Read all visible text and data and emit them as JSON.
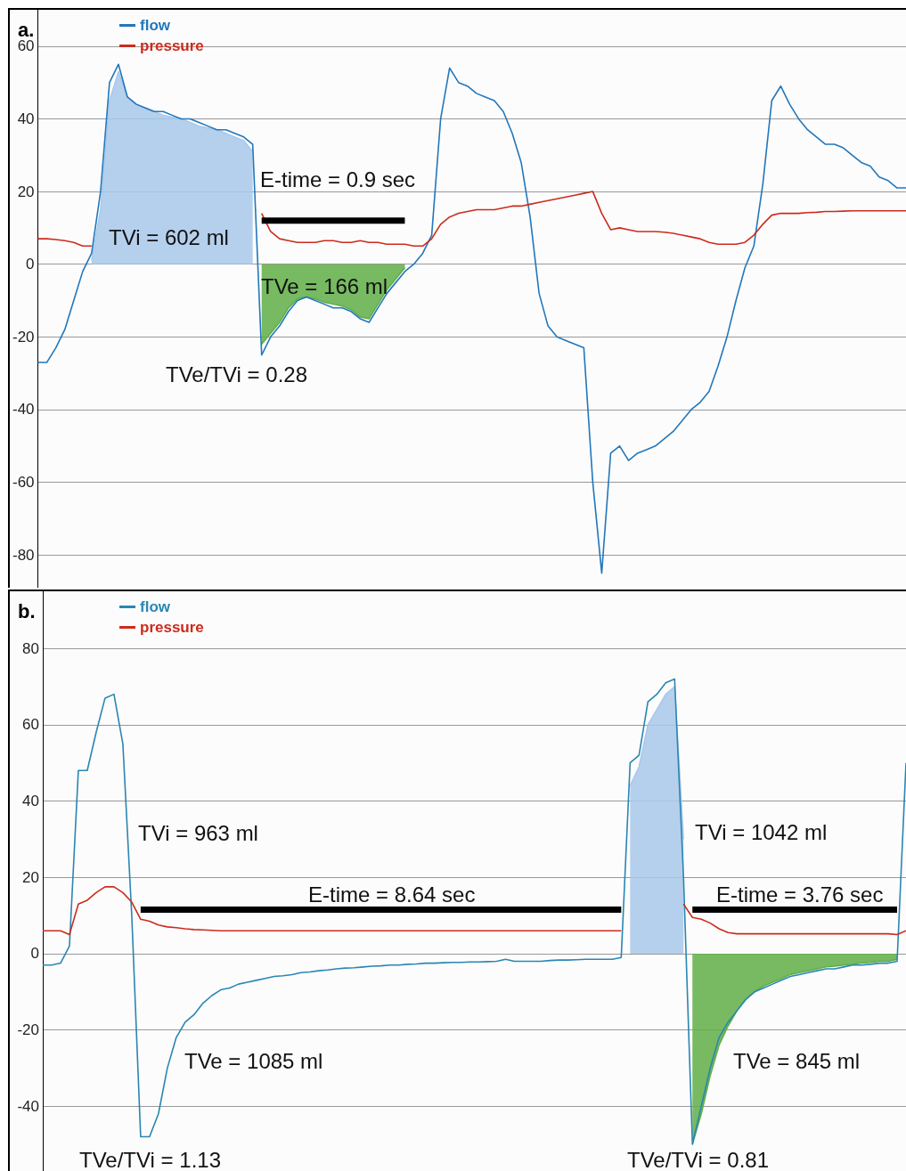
{
  "chart_data": [
    {
      "type": "line",
      "title": "a.",
      "categories": [
        null,
        null,
        null,
        null,
        null,
        null,
        null,
        null,
        null,
        null,
        null,
        null,
        null,
        null,
        null,
        null,
        null,
        null,
        null,
        null,
        null,
        null,
        null,
        null,
        null,
        null,
        null,
        null,
        null,
        null,
        null,
        null,
        null,
        null,
        null,
        null,
        null,
        null,
        null,
        null,
        null,
        null,
        null,
        null,
        null,
        null,
        null,
        null,
        null,
        null,
        null,
        null,
        null,
        null,
        null,
        null,
        null,
        null,
        null,
        null,
        null,
        null,
        null,
        null,
        null,
        null,
        null,
        null,
        null,
        null,
        null,
        null,
        null,
        null,
        null,
        null,
        null,
        null,
        null,
        null,
        null,
        null,
        null,
        null,
        null,
        null,
        null,
        null,
        null,
        null,
        null,
        null,
        null,
        null,
        null,
        null,
        null,
        null
      ],
      "ylim": [
        -89,
        70
      ],
      "yticks": [
        -80,
        -60,
        -40,
        -20,
        0,
        20,
        40,
        60
      ],
      "grid": "y",
      "legend": "top left",
      "tick_labels": "y",
      "marker": "none",
      "line_style": "solid",
      "annotations": [
        "E-time = 0.9 sec",
        "TVi = 602 ml",
        "TVe = 166 ml",
        "TVe/TVi = 0.28"
      ],
      "series": [
        {
          "type": "area",
          "color": "#a8c8ea",
          "values": [
            null,
            null,
            null,
            null,
            null,
            null,
            1,
            15,
            45,
            53,
            46,
            44,
            43,
            42,
            41,
            40.5,
            40,
            39,
            38,
            37.5,
            37,
            36,
            35,
            34,
            31,
            null,
            null,
            null,
            null,
            null,
            null,
            null,
            null,
            null,
            null,
            null,
            null,
            null,
            null,
            null,
            null,
            null,
            null,
            null,
            null,
            null,
            null,
            null,
            null,
            null,
            null,
            null,
            null,
            null,
            null,
            null,
            null,
            null,
            null,
            null,
            null,
            null,
            null,
            null,
            null,
            null,
            null,
            null,
            null,
            null,
            null,
            null,
            null,
            null,
            null,
            null,
            null,
            null,
            null,
            null,
            null,
            null,
            null,
            null,
            null,
            null,
            null,
            null,
            null,
            null,
            null,
            null,
            null,
            null,
            null,
            null,
            null,
            null
          ]
        },
        {
          "type": "area",
          "color": "#5fae45",
          "values": [
            null,
            null,
            null,
            null,
            null,
            null,
            null,
            null,
            null,
            null,
            null,
            null,
            null,
            null,
            null,
            null,
            null,
            null,
            null,
            null,
            null,
            null,
            null,
            null,
            null,
            -22,
            -19,
            -16,
            -12,
            -9.5,
            -9,
            -9.5,
            -10.5,
            -11,
            -11.5,
            -12.5,
            -14.5,
            -15,
            -11,
            -7,
            -4,
            -1,
            null,
            null,
            null,
            null,
            null,
            null,
            null,
            null,
            null,
            null,
            null,
            null,
            null,
            null,
            null,
            null,
            null,
            null,
            null,
            null,
            null,
            null,
            null,
            null,
            null,
            null,
            null,
            null,
            null,
            null,
            null,
            null,
            null,
            null,
            null,
            null,
            null,
            null,
            null,
            null,
            null,
            null,
            null,
            null,
            null,
            null,
            null,
            null,
            null,
            null,
            null,
            null,
            null,
            null,
            null,
            null
          ]
        },
        {
          "name": "flow",
          "color": "#2277bb",
          "values": [
            -27,
            -27,
            -23,
            -18,
            -10,
            -2,
            3,
            20,
            50,
            55,
            46,
            44,
            43,
            42,
            42,
            41,
            40,
            40,
            39,
            38,
            37,
            37,
            36,
            35,
            33,
            -25,
            -20,
            -17,
            -13,
            -10,
            -9,
            -10,
            -11,
            -12,
            -12,
            -13,
            -15,
            -16,
            -12,
            -8,
            -5,
            -2,
            0,
            3,
            8,
            40,
            54,
            50,
            49,
            47,
            46,
            45,
            42,
            36,
            28,
            13,
            -8,
            -17,
            -20,
            -21,
            -22,
            -23,
            -60,
            -85,
            -52,
            -50,
            -54,
            -52,
            -51,
            -50,
            -48,
            -46,
            -43,
            -40,
            -38,
            -35,
            -28,
            -20,
            -10,
            -1,
            5,
            22,
            45,
            49,
            44,
            40,
            37,
            35,
            33,
            33,
            32,
            30,
            28,
            27,
            24,
            23,
            21,
            21
          ]
        },
        {
          "name": "pressure",
          "color": "#cc2b1d",
          "values": [
            7,
            7,
            6.8,
            6.5,
            6,
            5,
            5,
            null,
            null,
            null,
            null,
            null,
            null,
            null,
            null,
            null,
            null,
            null,
            null,
            null,
            null,
            null,
            null,
            null,
            null,
            14,
            9,
            7,
            6.5,
            6,
            6,
            6,
            6.5,
            6.5,
            6,
            6,
            6.5,
            6,
            6,
            5.5,
            5.5,
            5.5,
            5,
            5,
            7,
            11,
            13,
            14,
            14.5,
            15,
            15,
            15,
            15.5,
            16,
            16,
            16.5,
            17,
            17.5,
            18,
            18.5,
            19,
            19.5,
            20,
            14,
            9.5,
            10,
            9.5,
            9,
            9,
            9,
            8.8,
            8.5,
            8,
            7.5,
            7,
            6,
            5.5,
            5.5,
            5.5,
            6,
            8,
            11,
            13.5,
            14,
            14,
            14,
            14.2,
            14.3,
            14.5,
            14.5,
            14.6,
            14.7,
            14.7,
            14.7,
            14.7,
            14.7,
            14.7,
            14.7
          ]
        },
        {
          "color": "#000000",
          "values": [
            null,
            null,
            null,
            null,
            null,
            null,
            null,
            null,
            null,
            null,
            null,
            null,
            null,
            null,
            null,
            null,
            null,
            null,
            null,
            null,
            null,
            null,
            null,
            null,
            null,
            12,
            12,
            12,
            12,
            12,
            12,
            12,
            12,
            12,
            12,
            12,
            12,
            12,
            12,
            12,
            12,
            12,
            null,
            null,
            null,
            null,
            null,
            null,
            null,
            null,
            null,
            null,
            null,
            null,
            null,
            null,
            null,
            null,
            null,
            null,
            null,
            null,
            null,
            null,
            null,
            null,
            null,
            null,
            null,
            null,
            null,
            null,
            null,
            null,
            null,
            null,
            null,
            null,
            null,
            null,
            null,
            null,
            null,
            null,
            null,
            null,
            null,
            null,
            null,
            null,
            null,
            null,
            null,
            null,
            null,
            null,
            null,
            null
          ]
        }
      ]
    },
    {
      "type": "line",
      "title": "b.",
      "categories": [
        null,
        null,
        null,
        null,
        null,
        null,
        null,
        null,
        null,
        null,
        null,
        null,
        null,
        null,
        null,
        null,
        null,
        null,
        null,
        null,
        null,
        null,
        null,
        null,
        null,
        null,
        null,
        null,
        null,
        null,
        null,
        null,
        null,
        null,
        null,
        null,
        null,
        null,
        null,
        null,
        null,
        null,
        null,
        null,
        null,
        null,
        null,
        null,
        null,
        null,
        null,
        null,
        null,
        null,
        null,
        null,
        null,
        null,
        null,
        null,
        null,
        null,
        null,
        null,
        null,
        null,
        null,
        null,
        null,
        null,
        null,
        null,
        null,
        null,
        null,
        null,
        null,
        null,
        null,
        null,
        null,
        null,
        null,
        null,
        null,
        null,
        null,
        null,
        null,
        null,
        null,
        null,
        null,
        null,
        null,
        null,
        null,
        null
      ],
      "ylim": [
        -57,
        95
      ],
      "yticks": [
        -40,
        -20,
        0,
        20,
        40,
        60,
        80
      ],
      "grid": "y",
      "legend": "top left",
      "tick_labels": "y",
      "marker": "none",
      "line_style": "solid",
      "annotations": [
        "TVi = 963 ml",
        "E-time = 8.64 sec",
        "TVi = 1042 ml",
        "E-time = 3.76 sec",
        "TVe = 1085 ml",
        "TVe = 845 ml",
        "TVe/TVi = 1.13",
        "TVe/TVi = 0.81"
      ],
      "series": [
        {
          "type": "area",
          "color": "#a8c8ea",
          "values": [
            null,
            null,
            null,
            null,
            null,
            null,
            null,
            null,
            null,
            null,
            null,
            null,
            null,
            null,
            null,
            null,
            null,
            null,
            null,
            null,
            null,
            null,
            null,
            null,
            null,
            null,
            null,
            null,
            null,
            null,
            null,
            null,
            null,
            null,
            null,
            null,
            null,
            null,
            null,
            null,
            null,
            null,
            null,
            null,
            null,
            null,
            null,
            null,
            null,
            null,
            null,
            null,
            null,
            null,
            null,
            null,
            null,
            null,
            null,
            null,
            null,
            null,
            null,
            null,
            null,
            null,
            44,
            49,
            60,
            64,
            68,
            70,
            30,
            null,
            null,
            null,
            null,
            null,
            null,
            null,
            null,
            null,
            null,
            null,
            null,
            null,
            null,
            null,
            null,
            null,
            null,
            null,
            null,
            null,
            null,
            null,
            null,
            null
          ]
        },
        {
          "type": "area",
          "color": "#5fae45",
          "values": [
            null,
            null,
            null,
            null,
            null,
            null,
            null,
            null,
            null,
            null,
            null,
            null,
            null,
            null,
            null,
            null,
            null,
            null,
            null,
            null,
            null,
            null,
            null,
            null,
            null,
            null,
            null,
            null,
            null,
            null,
            null,
            null,
            null,
            null,
            null,
            null,
            null,
            null,
            null,
            null,
            null,
            null,
            null,
            null,
            null,
            null,
            null,
            null,
            null,
            null,
            null,
            null,
            null,
            null,
            null,
            null,
            null,
            null,
            null,
            null,
            null,
            null,
            null,
            null,
            null,
            null,
            null,
            null,
            null,
            null,
            null,
            null,
            null,
            -50,
            -42,
            -32,
            -24,
            -19,
            -15,
            -12,
            -10,
            -8.5,
            -7.5,
            -6.5,
            -5.5,
            -5,
            -4.5,
            -4,
            -3.5,
            -3.3,
            -3,
            -2.8,
            -2.5,
            -2.3,
            -2,
            -2,
            -1.5,
            null
          ]
        },
        {
          "name": "flow",
          "color": "#2a86b3",
          "values": [
            -3,
            -3,
            -2.5,
            2,
            48,
            48,
            58,
            67,
            68,
            55,
            10,
            -48,
            -48,
            -42,
            -30,
            -22,
            -18,
            -16,
            -13,
            -11,
            -9.5,
            -9,
            -8,
            -7.5,
            -7,
            -6.5,
            -6,
            -5.8,
            -5.5,
            -5,
            -4.8,
            -4.5,
            -4.3,
            -4,
            -3.8,
            -3.7,
            -3.5,
            -3.3,
            -3.2,
            -3,
            -3,
            -2.8,
            -2.7,
            -2.5,
            -2.5,
            -2.4,
            -2.3,
            -2.3,
            -2.2,
            -2.2,
            -2.1,
            -2,
            -1.5,
            -2,
            -2,
            -2,
            -2,
            -1.8,
            -1.7,
            -1.7,
            -1.6,
            -1.5,
            -1.5,
            -1.5,
            -1.5,
            -1,
            50,
            52,
            66,
            68,
            71,
            72,
            20,
            -50,
            -40,
            -30,
            -22,
            -18,
            -15,
            -12,
            -10,
            -9,
            -8,
            -7,
            -6,
            -5.5,
            -5,
            -4.5,
            -4,
            -4,
            -3.5,
            -3,
            -3,
            -2.8,
            -2.5,
            -2.5,
            -2,
            50
          ]
        },
        {
          "name": "pressure",
          "color": "#cc2b1d",
          "values": [
            6,
            6,
            6,
            5,
            13,
            14,
            16,
            17.5,
            17.5,
            16,
            13.5,
            9,
            8.5,
            7.5,
            7,
            6.8,
            6.5,
            6.3,
            6.2,
            6.1,
            6,
            6,
            6,
            6,
            6,
            6,
            6,
            6,
            6,
            6,
            6,
            6,
            6,
            6,
            6,
            6,
            6,
            6,
            6,
            6,
            6,
            6,
            6,
            6,
            6,
            6,
            6,
            6,
            6,
            6,
            6,
            6,
            6,
            6,
            6,
            6,
            6,
            6,
            6,
            6,
            6,
            6,
            6,
            6,
            6,
            6,
            null,
            null,
            null,
            null,
            null,
            null,
            13,
            9.5,
            9,
            8,
            6.5,
            5.5,
            5.2,
            5.2,
            5.2,
            5.2,
            5.2,
            5.2,
            5.2,
            5.2,
            5.2,
            5.2,
            5.2,
            5.2,
            5.2,
            5.2,
            5.2,
            5.2,
            5.2,
            5.2,
            5,
            6
          ]
        },
        {
          "color": "#000000",
          "values": [
            null,
            null,
            null,
            null,
            null,
            null,
            null,
            null,
            null,
            null,
            null,
            11.5,
            11.5,
            11.5,
            11.5,
            11.5,
            11.5,
            11.5,
            11.5,
            11.5,
            11.5,
            11.5,
            11.5,
            11.5,
            11.5,
            11.5,
            11.5,
            11.5,
            11.5,
            11.5,
            11.5,
            11.5,
            11.5,
            11.5,
            11.5,
            11.5,
            11.5,
            11.5,
            11.5,
            11.5,
            11.5,
            11.5,
            11.5,
            11.5,
            11.5,
            11.5,
            11.5,
            11.5,
            11.5,
            11.5,
            11.5,
            11.5,
            11.5,
            11.5,
            11.5,
            11.5,
            11.5,
            11.5,
            11.5,
            11.5,
            11.5,
            11.5,
            11.5,
            11.5,
            11.5,
            11.5,
            null,
            null,
            null,
            null,
            null,
            null,
            null,
            null,
            null,
            null,
            null,
            null,
            null,
            null,
            null,
            null,
            null,
            null,
            null,
            null,
            null,
            null,
            null,
            null,
            null,
            null,
            null,
            null,
            null,
            null,
            null,
            null
          ]
        },
        {
          "color": "#000000",
          "values": [
            null,
            null,
            null,
            null,
            null,
            null,
            null,
            null,
            null,
            null,
            null,
            null,
            null,
            null,
            null,
            null,
            null,
            null,
            null,
            null,
            null,
            null,
            null,
            null,
            null,
            null,
            null,
            null,
            null,
            null,
            null,
            null,
            null,
            null,
            null,
            null,
            null,
            null,
            null,
            null,
            null,
            null,
            null,
            null,
            null,
            null,
            null,
            null,
            null,
            null,
            null,
            null,
            null,
            null,
            null,
            null,
            null,
            null,
            null,
            null,
            null,
            null,
            null,
            null,
            null,
            null,
            null,
            null,
            null,
            null,
            null,
            null,
            null,
            11.5,
            11.5,
            11.5,
            11.5,
            11.5,
            11.5,
            11.5,
            11.5,
            11.5,
            11.5,
            11.5,
            11.5,
            11.5,
            11.5,
            11.5,
            11.5,
            11.5,
            11.5,
            11.5,
            11.5,
            11.5,
            11.5,
            11.5,
            11.5,
            null
          ]
        }
      ]
    }
  ]
}
